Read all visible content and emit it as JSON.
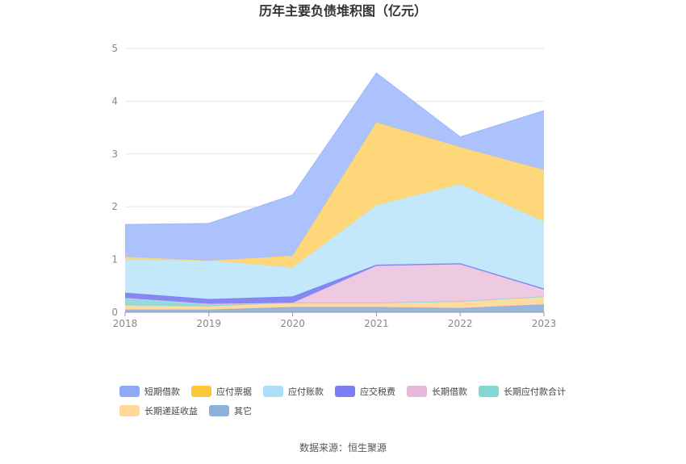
{
  "chart_data": {
    "type": "area",
    "title": "历年主要负债堆积图（亿元）",
    "x": [
      "2018",
      "2019",
      "2020",
      "2021",
      "2022",
      "2023"
    ],
    "ylim": [
      0,
      5
    ],
    "yticks": [
      0,
      1,
      2,
      3,
      4,
      5
    ],
    "grid": true,
    "stacked": true,
    "legend_position": "bottom",
    "series": [
      {
        "name": "其它",
        "color": "#8fb0dc",
        "values": [
          0.05,
          0.05,
          0.1,
          0.1,
          0.08,
          0.15
        ]
      },
      {
        "name": "长期递延收益",
        "color": "#ffd89a",
        "values": [
          0.08,
          0.06,
          0.08,
          0.08,
          0.13,
          0.15
        ]
      },
      {
        "name": "长期应付款合计",
        "color": "#8ad7d7",
        "values": [
          0.14,
          0.05,
          0.0,
          0.0,
          0.0,
          0.0
        ]
      },
      {
        "name": "长期借款",
        "color": "#ecc4e0",
        "values": [
          0.0,
          0.0,
          0.0,
          0.7,
          0.7,
          0.13
        ]
      },
      {
        "name": "应交税费",
        "color": "#7b7ef2",
        "values": [
          0.1,
          0.09,
          0.12,
          0.02,
          0.02,
          0.02
        ]
      },
      {
        "name": "应付账款",
        "color": "#bfe6fb",
        "values": [
          0.63,
          0.73,
          0.55,
          1.13,
          1.5,
          1.27
        ]
      },
      {
        "name": "应付票据",
        "color": "#ffd470",
        "values": [
          0.05,
          0.0,
          0.22,
          1.57,
          0.7,
          0.98
        ]
      },
      {
        "name": "短期借款",
        "color": "#a4bdfc",
        "values": [
          0.61,
          0.7,
          1.15,
          0.93,
          0.19,
          1.12
        ]
      }
    ]
  },
  "legend": [
    {
      "name": "短期借款",
      "color": "#8fa8f8"
    },
    {
      "name": "应付票据",
      "color": "#fcc63a"
    },
    {
      "name": "应付账款",
      "color": "#abdff8"
    },
    {
      "name": "应交税费",
      "color": "#7b7ef2"
    },
    {
      "name": "长期借款",
      "color": "#e8b8da"
    },
    {
      "name": "长期应付款合计",
      "color": "#84d6d4"
    },
    {
      "name": "长期递延收益",
      "color": "#ffd89a"
    },
    {
      "name": "其它",
      "color": "#8fb0dc"
    }
  ],
  "source": "数据来源：恒生聚源"
}
